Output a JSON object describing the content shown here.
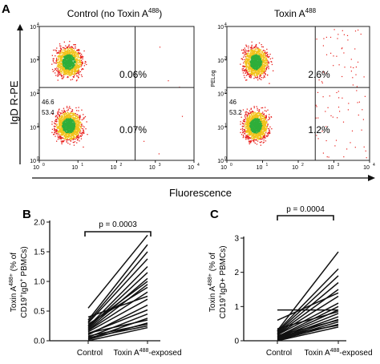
{
  "figure": {
    "panel_a": {
      "letter": "A",
      "y_axis_label": "IgD R-PE",
      "x_axis_label": "Fluorescence",
      "plots": [
        {
          "title_main": "Control (no Toxin A",
          "title_sup": "488",
          "title_tail": ")",
          "upper_left_pct": "46.6",
          "lower_left_pct": "53.4",
          "upper_right_pct": "0.06%",
          "lower_right_pct": "0.07%",
          "y_tag": ""
        },
        {
          "title_main": "Toxin A",
          "title_sup": "488",
          "title_tail": "",
          "upper_left_pct": "46",
          "lower_left_pct": "53.2",
          "upper_right_pct": "2.6%",
          "lower_right_pct": "1.2%",
          "y_tag": "PELog"
        }
      ],
      "tick_base": "10",
      "tick_exps": [
        "0",
        "1",
        "2",
        "3",
        "4"
      ]
    },
    "panel_b": {
      "letter": "B",
      "ylabel_line1": "Toxin A",
      "ylabel_sup1": "488+",
      "ylabel_line2a": "(% of",
      "ylabel_line3a": "CD19",
      "ylabel_sup3": "+",
      "ylabel_line3b": "IgD",
      "ylabel_sup3b": "+",
      "ylabel_line3c": " PBMCs)",
      "p_value": "p = 0.0003",
      "x_label_control": "Control",
      "x_label_exposed_a": "Toxin A",
      "x_label_exposed_sup": "488",
      "x_label_exposed_b": "-exposed"
    },
    "panel_c": {
      "letter": "C",
      "ylabel_line1": "Toxin A",
      "ylabel_sup1": "488+",
      "ylabel_line2a": "(% of",
      "ylabel_line3a": "CD19",
      "ylabel_sup3": "+",
      "ylabel_line3b": "IgD+ PBMCs)",
      "p_value": "p = 0.0004",
      "x_label_control": "Control",
      "x_label_exposed_a": "Toxin A",
      "x_label_exposed_sup": "488",
      "x_label_exposed_b": "-exposed"
    }
  },
  "chart_data": [
    {
      "type": "scatter",
      "panel": "A-left",
      "x_scale": "log",
      "y_scale": "log",
      "xlim": [
        1,
        10000
      ],
      "ylim": [
        1,
        10000
      ],
      "gate": {
        "x": 300,
        "y": 150
      },
      "populations": [
        {
          "center_log": [
            0.75,
            2.95
          ],
          "count": 1400
        },
        {
          "center_log": [
            0.75,
            1.05
          ],
          "count": 1500
        }
      ],
      "quadrants": {
        "upper_left": 46.6,
        "lower_left": 53.4,
        "upper_right": 0.06,
        "lower_right": 0.07
      },
      "colors": {
        "low": "#e8201c",
        "mid": "#f2c21a",
        "high": "#2fae3b"
      }
    },
    {
      "type": "scatter",
      "panel": "A-right",
      "x_scale": "log",
      "y_scale": "log",
      "xlim": [
        1,
        10000
      ],
      "ylim": [
        1,
        10000
      ],
      "gate": {
        "x": 300,
        "y": 150
      },
      "populations": [
        {
          "center_log": [
            0.8,
            2.95
          ],
          "count": 1400
        },
        {
          "center_log": [
            0.8,
            1.05
          ],
          "count": 1500
        }
      ],
      "quadrants": {
        "upper_left": 46,
        "lower_left": 53.2,
        "upper_right": 2.6,
        "lower_right": 1.2
      },
      "colors": {
        "low": "#e8201c",
        "mid": "#f2c21a",
        "high": "#2fae3b"
      }
    },
    {
      "type": "line",
      "panel": "B",
      "categories": [
        "Control",
        "Toxin A488-exposed"
      ],
      "ylim": [
        0,
        2.0
      ],
      "yticks": [
        0.0,
        0.5,
        1.0,
        1.5,
        2.0
      ],
      "pairs": [
        [
          0.0,
          0.22
        ],
        [
          0.02,
          0.3
        ],
        [
          0.03,
          0.38
        ],
        [
          0.05,
          0.25
        ],
        [
          0.06,
          0.45
        ],
        [
          0.08,
          0.28
        ],
        [
          0.1,
          0.6
        ],
        [
          0.12,
          0.52
        ],
        [
          0.13,
          0.35
        ],
        [
          0.15,
          0.7
        ],
        [
          0.17,
          0.82
        ],
        [
          0.18,
          0.95
        ],
        [
          0.2,
          1.05
        ],
        [
          0.22,
          1.15
        ],
        [
          0.24,
          1.25
        ],
        [
          0.26,
          1.0
        ],
        [
          0.28,
          0.9
        ],
        [
          0.3,
          1.38
        ],
        [
          0.32,
          1.5
        ],
        [
          0.35,
          1.62
        ],
        [
          0.4,
          0.75
        ],
        [
          0.55,
          1.78
        ]
      ]
    },
    {
      "type": "line",
      "panel": "C",
      "categories": [
        "Control",
        "Toxin A488-exposed"
      ],
      "ylim": [
        0,
        3
      ],
      "yticks": [
        0,
        1,
        2,
        3
      ],
      "pairs": [
        [
          0.0,
          0.4
        ],
        [
          0.02,
          0.48
        ],
        [
          0.03,
          0.55
        ],
        [
          0.05,
          0.62
        ],
        [
          0.06,
          0.7
        ],
        [
          0.08,
          0.8
        ],
        [
          0.1,
          0.9
        ],
        [
          0.12,
          1.0
        ],
        [
          0.13,
          0.45
        ],
        [
          0.15,
          0.6
        ],
        [
          0.17,
          1.1
        ],
        [
          0.18,
          1.3
        ],
        [
          0.2,
          1.5
        ],
        [
          0.22,
          1.7
        ],
        [
          0.25,
          1.9
        ],
        [
          0.28,
          2.1
        ],
        [
          0.3,
          2.6
        ],
        [
          0.35,
          0.85
        ],
        [
          0.9,
          0.9
        ],
        [
          0.6,
          1.4
        ]
      ]
    }
  ]
}
